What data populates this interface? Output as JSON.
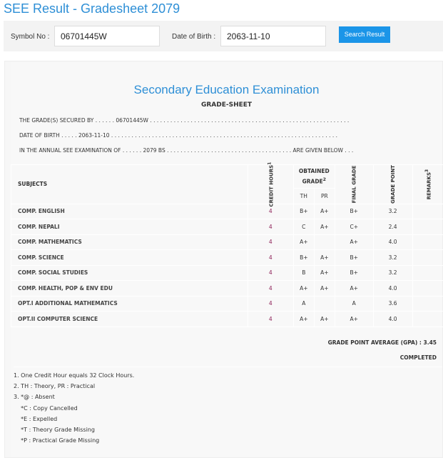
{
  "page_title": "SEE Result - Gradesheet 2079",
  "search": {
    "symbol_label": "Symbol No :",
    "symbol_value": "06701445W",
    "dob_label": "Date of Birth :",
    "dob_value": "2063-11-10",
    "button": "Search Result"
  },
  "sheet": {
    "exam_title": "Secondary Education Examination",
    "sheet_title": "GRADE-SHEET",
    "line1": "THE GRADE(S) SECURED BY . . . . . . 06701445W . . . . . . . . . . . . . . . . . . . . . . . . . . . . . . . . . . . . . . . . . . . . . . . . . . . . . . . . . . .",
    "line2": "DATE OF BIRTH . . . . . 2063-11-10 . . . . . . . . . . . . . . . . . . . . . . . . . . . . . . . . . . . . . . . . . . . . . . . . . . . . . . . . . . . . . . . . . . .",
    "line3": "IN THE ANNUAL SEE EXAMINATION OF . . . . . . 2079 BS . . . . . . . . . . . . . . . . . . . . . . . . . . . . . . . . . . . . . ARE GIVEN BELOW . . .",
    "headers": {
      "subjects": "SUBJECTS",
      "credit_hours": "CREDIT HOURS",
      "credit_sup": "1",
      "obtained": "OBTAINED GRADE",
      "obtained_sup": "2",
      "th": "TH",
      "pr": "PR",
      "final": "FINAL GRADE",
      "grade_point": "GRADE POINT",
      "remarks": "REMARKS",
      "remarks_sup": "3"
    },
    "rows": [
      {
        "subject": "COMP. ENGLISH",
        "credit": "4",
        "th": "B+",
        "pr": "A+",
        "final": "B+",
        "gp": "3.2",
        "remarks": ""
      },
      {
        "subject": "COMP. NEPALI",
        "credit": "4",
        "th": "C",
        "pr": "A+",
        "final": "C+",
        "gp": "2.4",
        "remarks": ""
      },
      {
        "subject": "COMP. MATHEMATICS",
        "credit": "4",
        "th": "A+",
        "pr": "",
        "final": "A+",
        "gp": "4.0",
        "remarks": ""
      },
      {
        "subject": "COMP. SCIENCE",
        "credit": "4",
        "th": "B+",
        "pr": "A+",
        "final": "B+",
        "gp": "3.2",
        "remarks": ""
      },
      {
        "subject": "COMP. SOCIAL STUDIES",
        "credit": "4",
        "th": "B",
        "pr": "A+",
        "final": "B+",
        "gp": "3.2",
        "remarks": ""
      },
      {
        "subject": "COMP. HEALTH, POP & ENV EDU",
        "credit": "4",
        "th": "A+",
        "pr": "A+",
        "final": "A+",
        "gp": "4.0",
        "remarks": ""
      },
      {
        "subject": "OPT.I ADDITIONAL MATHEMATICS",
        "credit": "4",
        "th": "A",
        "pr": "",
        "final": "A",
        "gp": "3.6",
        "remarks": ""
      },
      {
        "subject": "OPT.II COMPUTER SCIENCE",
        "credit": "4",
        "th": "A+",
        "pr": "A+",
        "final": "A+",
        "gp": "4.0",
        "remarks": ""
      }
    ],
    "gpa": "GRADE POINT AVERAGE (GPA) : 3.45",
    "status": "COMPLETED",
    "notes": [
      "1. One Credit Hour equals 32 Clock Hours.",
      "2. TH : Theory, PR : Practical",
      "3. *@ : Absent",
      "    *C : Copy Cancelled",
      "    *E : Expelled",
      "    *T : Theory Grade Missing",
      "    *P : Practical Grade Missing"
    ]
  },
  "colors": {
    "accent": "#2e8fd6",
    "button": "#1b95e8",
    "credit": "#8b1e55"
  }
}
